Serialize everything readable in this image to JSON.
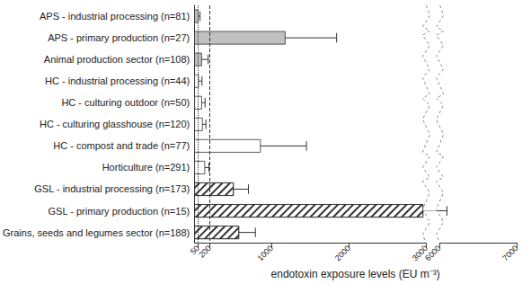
{
  "chart_data": {
    "type": "bar",
    "orientation": "horizontal",
    "xlabel": "endotoxin exposure levels (EU m⁻³)",
    "categories": [
      "APS - industrial processing (n=81)",
      "APS - primary production (n=27)",
      "Animal production sector (n=108)",
      "HC - industrial processing (n=44)",
      "HC - culturing outdoor (n=50)",
      "HC - culturing glasshouse (n=120)",
      "HC - compost and trade (n=77)",
      "Horticulture (n=291)",
      "GSL - industrial processing (n=173)",
      "GSL - primary production (n=15)",
      "Grains, seeds and legumes sector (n=188)"
    ],
    "series": [
      {
        "color": "#c0c0c0",
        "values": [
          55,
          1180,
          100,
          null,
          null,
          null,
          null,
          null,
          null,
          null,
          null
        ]
      },
      {
        "color": "#ffffff",
        "values": [
          null,
          null,
          null,
          60,
          100,
          110,
          860,
          140,
          null,
          null,
          null
        ]
      },
      {
        "color": "#ffffff",
        "marker": "hatch",
        "values": [
          null,
          null,
          null,
          null,
          null,
          null,
          null,
          null,
          510,
          2960,
          580
        ]
      }
    ],
    "errors": [
      [
        35,
        75
      ],
      [
        770,
        1840
      ],
      [
        40,
        180
      ],
      [
        30,
        100
      ],
      [
        60,
        140
      ],
      [
        70,
        150
      ],
      [
        520,
        1450
      ],
      [
        100,
        190
      ],
      [
        370,
        700
      ],
      [
        2400,
        6100
      ],
      [
        420,
        790
      ]
    ],
    "xlim": [
      0,
      7000
    ],
    "xticks": [
      50,
      200,
      1000,
      2000,
      3000,
      6000,
      7000
    ],
    "xbreak": [
      3000,
      6000
    ],
    "reference_lines": [
      {
        "value": 50,
        "line_style": "dotted"
      },
      {
        "value": 200,
        "line_style": "dashed"
      }
    ],
    "grid": false
  }
}
